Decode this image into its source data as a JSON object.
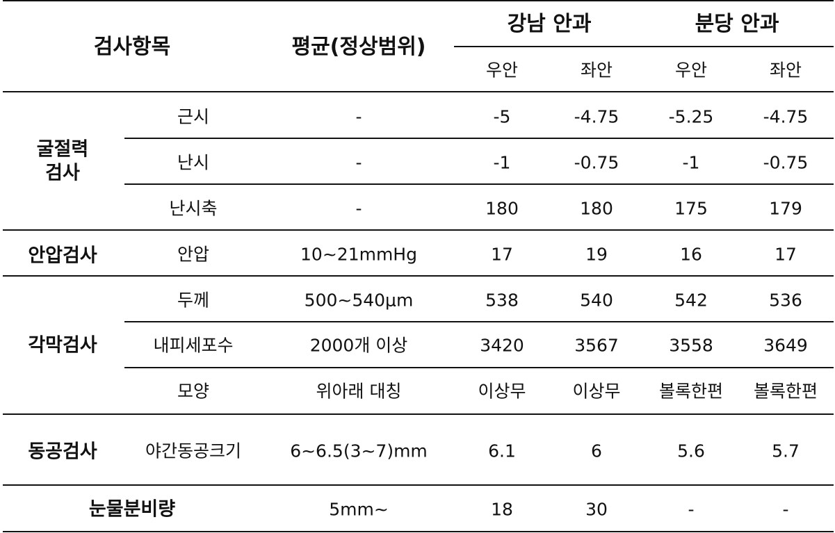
{
  "header": {
    "item": "검사항목",
    "average": "평균(정상범위)",
    "gangnam": "강남 안과",
    "bundang": "분당 안과",
    "right_eye": "우안",
    "left_eye": "좌안"
  },
  "groups": {
    "refraction_line1": "굴절력",
    "refraction_line2": "검사",
    "iop": "안압검사",
    "cornea": "각막검사",
    "pupil": "동공검사",
    "tear": "눈물분비량"
  },
  "rows": [
    {
      "item": "근시",
      "avg": "-",
      "g_r": "-5",
      "g_l": "-4.75",
      "b_r": "-5.25",
      "b_l": "-4.75"
    },
    {
      "item": "난시",
      "avg": "-",
      "g_r": "-1",
      "g_l": "-0.75",
      "b_r": "-1",
      "b_l": "-0.75"
    },
    {
      "item": "난시축",
      "avg": "-",
      "g_r": "180",
      "g_l": "180",
      "b_r": "175",
      "b_l": "179"
    },
    {
      "item": "안압",
      "avg": "10~21mmHg",
      "g_r": "17",
      "g_l": "19",
      "b_r": "16",
      "b_l": "17"
    },
    {
      "item": "두께",
      "avg": "500~540μm",
      "g_r": "538",
      "g_l": "540",
      "b_r": "542",
      "b_l": "536"
    },
    {
      "item": "내피세포수",
      "avg": "2000개 이상",
      "g_r": "3420",
      "g_l": "3567",
      "b_r": "3558",
      "b_l": "3649"
    },
    {
      "item": "모양",
      "avg": "위아래 대칭",
      "g_r": "이상무",
      "g_l": "이상무",
      "b_r": "볼록한편",
      "b_l": "볼록한편"
    },
    {
      "item": "야간동공크기",
      "avg": "6~6.5(3~7)mm",
      "g_r": "6.1",
      "g_l": "6",
      "b_r": "5.6",
      "b_l": "5.7"
    },
    {
      "item": "",
      "avg": "5mm~",
      "g_r": "18",
      "g_l": "30",
      "b_r": "-",
      "b_l": "-"
    }
  ]
}
